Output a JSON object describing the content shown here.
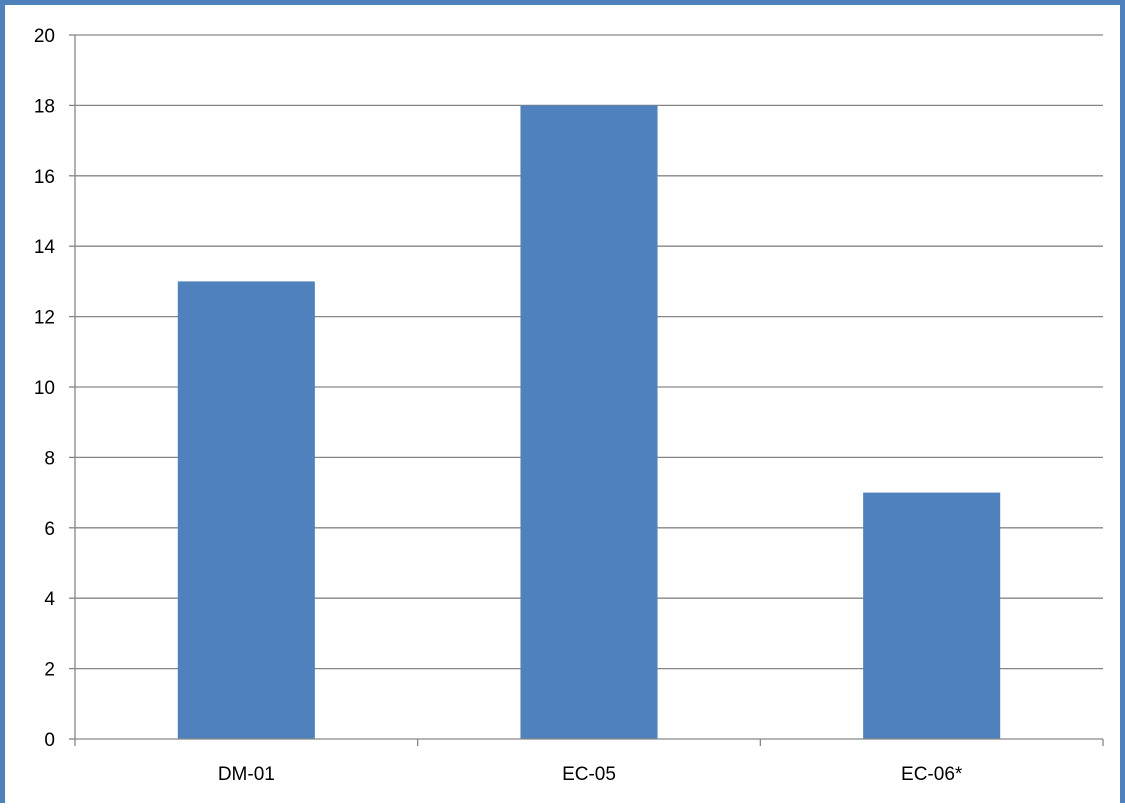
{
  "chart_data": {
    "type": "bar",
    "categories": [
      "DM-01",
      "EC-05",
      "EC-06*"
    ],
    "values": [
      13,
      18,
      7
    ],
    "title": "",
    "xlabel": "",
    "ylabel": "",
    "ylim": [
      0,
      20
    ],
    "yticks": [
      0,
      2,
      4,
      6,
      8,
      10,
      12,
      14,
      16,
      18,
      20
    ],
    "grid": true,
    "legend": "none",
    "colors": {
      "bar": "#4f81bd",
      "grid": "#868686",
      "axis": "#868686",
      "frame": "#4f81bd"
    }
  }
}
